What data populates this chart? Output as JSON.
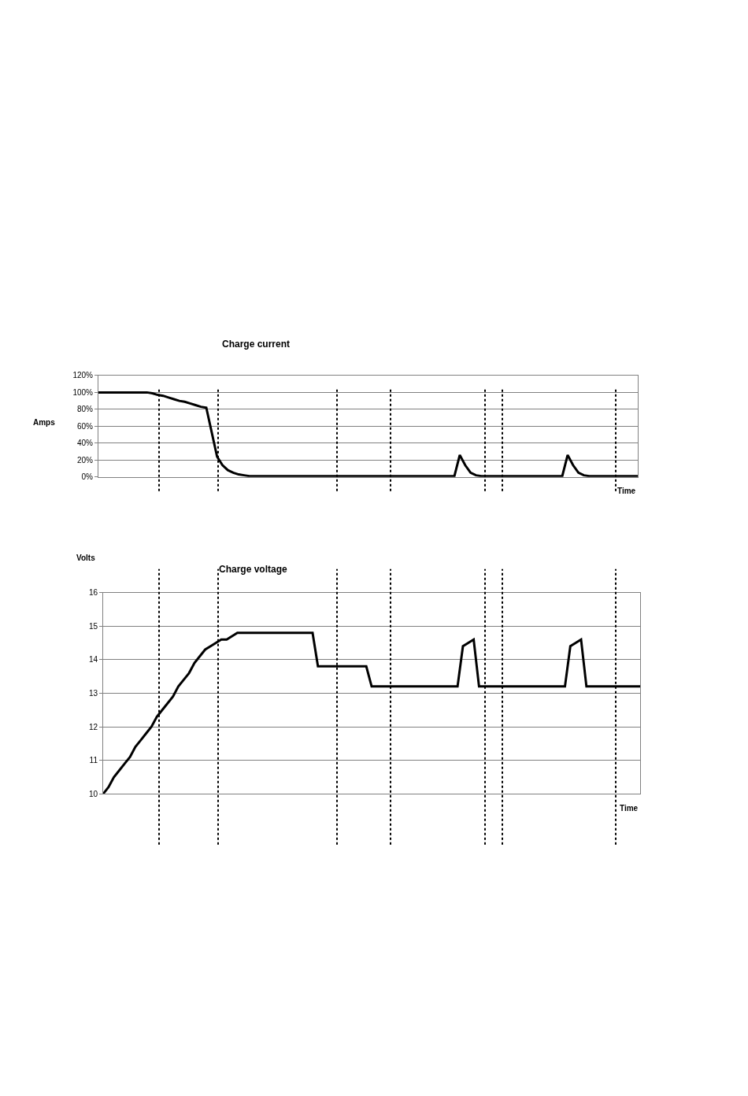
{
  "chart_data": [
    {
      "type": "line",
      "title": "Charge current",
      "ylabel": "Amps",
      "xlabel": "Time",
      "tick_labels": "y",
      "marker": "none",
      "line_style": "solid",
      "categories": [
        null,
        null,
        null,
        null,
        null,
        null,
        null,
        null,
        null,
        null,
        null,
        null,
        null,
        null,
        null,
        null,
        null,
        null,
        null,
        null,
        null,
        null,
        null,
        null,
        null,
        null,
        null,
        null,
        null,
        null,
        null,
        null,
        null,
        null,
        null,
        null,
        null,
        null,
        null,
        null,
        null,
        null,
        null,
        null,
        null,
        null,
        null,
        null,
        null,
        null,
        null,
        null,
        null,
        null,
        null,
        null,
        null,
        null,
        null,
        null,
        null,
        null,
        null,
        null,
        null,
        null,
        null,
        null,
        null,
        null,
        null,
        null,
        null,
        null,
        null,
        null,
        null,
        null,
        null,
        null,
        null,
        null,
        null,
        null,
        null,
        null,
        null,
        null,
        null,
        null,
        null,
        null,
        null,
        null,
        null,
        null,
        null,
        null,
        null,
        null,
        null
      ],
      "ylim": [
        0,
        120
      ],
      "yticks": [
        {
          "value": 0,
          "label": "0%"
        },
        {
          "value": 20,
          "label": "20%"
        },
        {
          "value": 40,
          "label": "40%"
        },
        {
          "value": 60,
          "label": "60%"
        },
        {
          "value": 80,
          "label": "80%"
        },
        {
          "value": 100,
          "label": "100%"
        },
        {
          "value": 120,
          "label": "120%"
        }
      ],
      "series": [
        {
          "color": "#000000",
          "values": [
            100,
            100,
            100,
            100,
            100,
            100,
            100,
            100,
            100,
            100,
            99,
            97,
            96,
            94,
            92,
            90,
            89,
            87,
            85,
            83,
            82,
            53,
            24,
            14,
            8,
            5,
            3,
            2,
            1,
            1,
            1,
            1,
            1,
            1,
            1,
            1,
            1,
            1,
            1,
            1,
            1,
            1,
            1,
            1,
            1,
            1,
            1,
            1,
            1,
            1,
            1,
            1,
            1,
            1,
            1,
            1,
            1,
            1,
            1,
            1,
            1,
            1,
            1,
            1,
            1,
            1,
            1,
            26,
            14,
            5,
            2,
            1,
            1,
            1,
            1,
            1,
            1,
            1,
            1,
            1,
            1,
            1,
            1,
            1,
            1,
            1,
            1,
            26,
            14,
            5,
            2,
            1,
            1,
            1,
            1,
            1,
            1,
            1,
            1,
            1,
            1
          ]
        }
      ],
      "grid": "y"
    },
    {
      "type": "line",
      "title": "Charge voltage",
      "ylabel": "Volts",
      "xlabel": "Time",
      "tick_labels": "y",
      "marker": "none",
      "line_style": "solid",
      "categories": [
        null,
        null,
        null,
        null,
        null,
        null,
        null,
        null,
        null,
        null,
        null,
        null,
        null,
        null,
        null,
        null,
        null,
        null,
        null,
        null,
        null,
        null,
        null,
        null,
        null,
        null,
        null,
        null,
        null,
        null,
        null,
        null,
        null,
        null,
        null,
        null,
        null,
        null,
        null,
        null,
        null,
        null,
        null,
        null,
        null,
        null,
        null,
        null,
        null,
        null,
        null,
        null,
        null,
        null,
        null,
        null,
        null,
        null,
        null,
        null,
        null,
        null,
        null,
        null,
        null,
        null,
        null,
        null,
        null,
        null,
        null,
        null,
        null,
        null,
        null,
        null,
        null,
        null,
        null,
        null,
        null,
        null,
        null,
        null,
        null,
        null,
        null,
        null,
        null,
        null,
        null,
        null,
        null,
        null,
        null,
        null,
        null,
        null,
        null,
        null,
        null
      ],
      "ylim": [
        10,
        16
      ],
      "yticks": [
        10,
        11,
        12,
        13,
        14,
        15,
        16
      ],
      "series": [
        {
          "color": "#000000",
          "values": [
            10,
            10.2,
            10.5,
            10.7,
            10.9,
            11.1,
            11.4,
            11.6,
            11.8,
            12,
            12.3,
            12.5,
            12.7,
            12.9,
            13.2,
            13.4,
            13.6,
            13.9,
            14.1,
            14.3,
            14.4,
            14.5,
            14.6,
            14.6,
            14.7,
            14.8,
            14.8,
            14.8,
            14.8,
            14.8,
            14.8,
            14.8,
            14.8,
            14.8,
            14.8,
            14.8,
            14.8,
            14.8,
            14.8,
            14.8,
            13.8,
            13.8,
            13.8,
            13.8,
            13.8,
            13.8,
            13.8,
            13.8,
            13.8,
            13.8,
            13.2,
            13.2,
            13.2,
            13.2,
            13.2,
            13.2,
            13.2,
            13.2,
            13.2,
            13.2,
            13.2,
            13.2,
            13.2,
            13.2,
            13.2,
            13.2,
            13.2,
            14.4,
            14.5,
            14.6,
            13.2,
            13.2,
            13.2,
            13.2,
            13.2,
            13.2,
            13.2,
            13.2,
            13.2,
            13.2,
            13.2,
            13.2,
            13.2,
            13.2,
            13.2,
            13.2,
            13.2,
            14.4,
            14.5,
            14.6,
            13.2,
            13.2,
            13.2,
            13.2,
            13.2,
            13.2,
            13.2,
            13.2,
            13.2,
            13.2,
            13.2
          ]
        }
      ],
      "grid": "y"
    }
  ]
}
